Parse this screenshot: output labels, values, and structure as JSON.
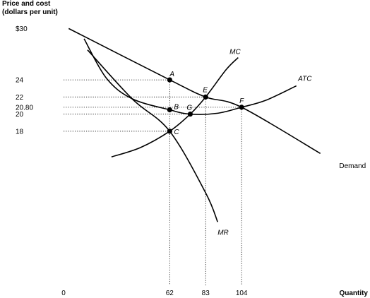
{
  "chart_data": {
    "type": "line",
    "title": "",
    "ylabel_line1": "Price and cost",
    "ylabel_line2": "(dollars per unit)",
    "xlabel": "Quantity",
    "origin_label": "0",
    "xlim": [
      0,
      179
    ],
    "ylim": [
      0,
      33
    ],
    "grid": false,
    "x_ticks": [
      {
        "value": 62,
        "label": "62"
      },
      {
        "value": 83,
        "label": "83"
      },
      {
        "value": 104,
        "label": "104"
      }
    ],
    "y_ticks": [
      {
        "value": 30,
        "label": "$30"
      },
      {
        "value": 24,
        "label": "24"
      },
      {
        "value": 22,
        "label": "22"
      },
      {
        "value": 20.8,
        "label": "20.80"
      },
      {
        "value": 20,
        "label": "20"
      },
      {
        "value": 18,
        "label": "18"
      }
    ],
    "series": [
      {
        "name": "Demand",
        "style": "plain",
        "label_at": [
          161,
          13.7
        ],
        "points": [
          [
            3,
            30
          ],
          [
            62,
            24
          ],
          [
            83,
            22
          ],
          [
            104,
            20.8
          ],
          [
            150,
            15.4
          ]
        ]
      },
      {
        "name": "MR",
        "style": "italic",
        "label_at": [
          90,
          5.9
        ],
        "points": [
          [
            14,
            27.5
          ],
          [
            40,
            21.8
          ],
          [
            62,
            18
          ],
          [
            83,
            10.8
          ],
          [
            90,
            7.4
          ]
        ]
      },
      {
        "name": "MC",
        "style": "italic",
        "label_at": [
          97,
          27
        ],
        "points": [
          [
            28,
            15
          ],
          [
            45,
            16.1
          ],
          [
            62,
            18
          ],
          [
            74,
            20
          ],
          [
            83,
            22
          ],
          [
            95,
            25.2
          ],
          [
            102,
            26.6
          ]
        ]
      },
      {
        "name": "ATC",
        "style": "italic",
        "label_at": [
          137,
          23.9
        ],
        "points": [
          [
            12,
            28.8
          ],
          [
            25,
            24.2
          ],
          [
            40,
            21.8
          ],
          [
            62,
            20.5
          ],
          [
            74,
            20
          ],
          [
            90,
            20.1
          ],
          [
            104,
            20.8
          ],
          [
            118,
            21.6
          ],
          [
            136,
            23.3
          ]
        ]
      }
    ],
    "points": [
      {
        "label": "A",
        "x": 62,
        "y": 24,
        "dx": 0,
        "dy": -5
      },
      {
        "label": "B",
        "x": 62,
        "y": 20.5,
        "dx": 6,
        "dy": -1
      },
      {
        "label": "C",
        "x": 62,
        "y": 18,
        "dx": 6,
        "dy": 4
      },
      {
        "label": "E",
        "x": 83,
        "y": 22,
        "dx": -4,
        "dy": -7
      },
      {
        "label": "F",
        "x": 104,
        "y": 20.8,
        "dx": -3,
        "dy": -6
      },
      {
        "label": "G",
        "x": 74,
        "y": 20,
        "dx": -5,
        "dy": -6
      }
    ],
    "guides": {
      "horizontal": [
        {
          "y": 24,
          "to_x": 62
        },
        {
          "y": 22,
          "to_x": 83
        },
        {
          "y": 20.8,
          "to_x": 104
        },
        {
          "y": 20,
          "to_x": 74
        },
        {
          "y": 18,
          "to_x": 62
        }
      ],
      "vertical": [
        {
          "x": 62,
          "from_y": 24
        },
        {
          "x": 83,
          "from_y": 22
        },
        {
          "x": 104,
          "from_y": 20.8
        }
      ]
    }
  }
}
